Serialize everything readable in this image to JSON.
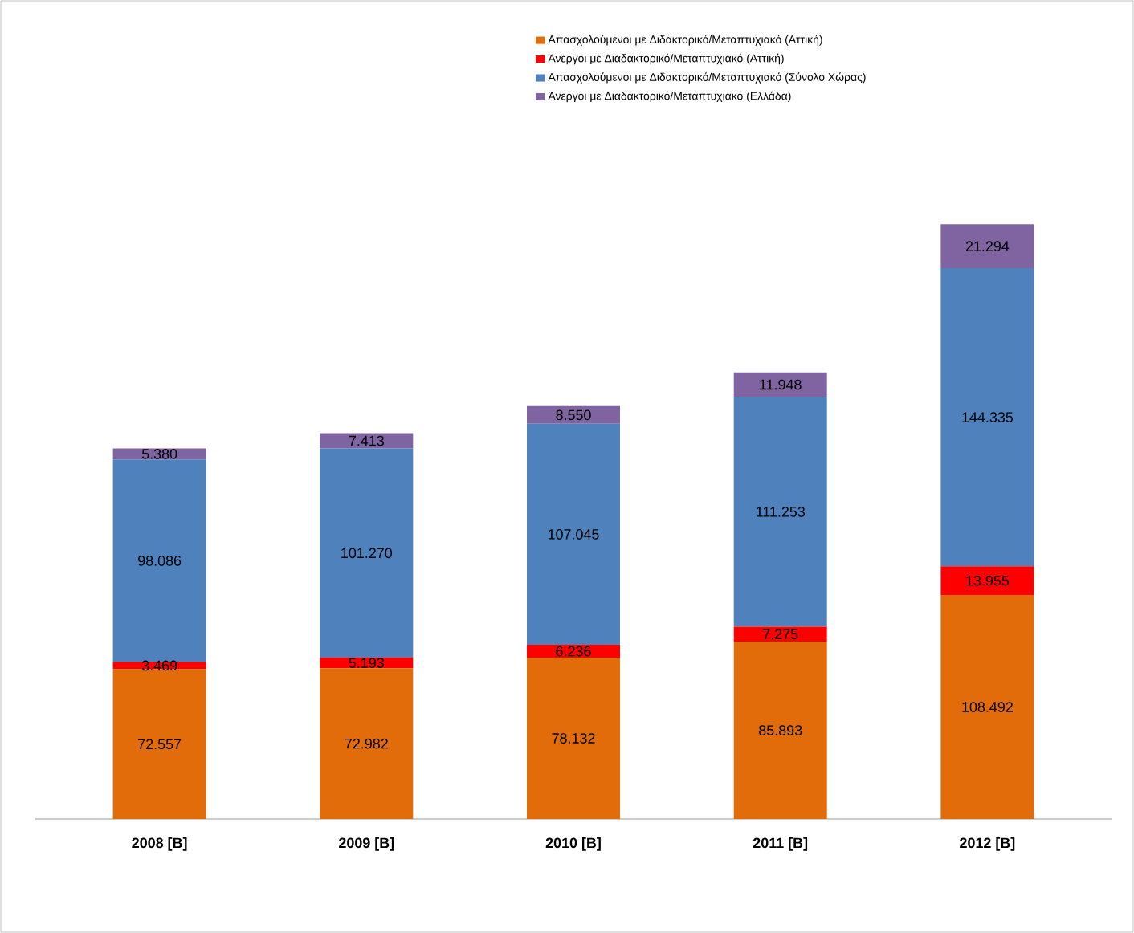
{
  "chart_data": {
    "type": "bar",
    "stacked": true,
    "legend": "top",
    "categories": [
      "2008 [Β]",
      "2009 [Β]",
      "2010 [Β]",
      "2011 [Β]",
      "2012 [Β]"
    ],
    "series": [
      {
        "name": "Απασχολούμενοι με Διδακτορικό/Μεταπτυχιακό (Αττική)",
        "color": "#e36c0a",
        "values": [
          72557,
          72982,
          78132,
          85893,
          108492
        ],
        "value_labels": [
          "72.557",
          "72.982",
          "78.132",
          "85.893",
          "108.492"
        ]
      },
      {
        "name": "Άνεργοι με Διαδακτορικό/Μεταπτυχιακό (Αττική)",
        "color": "#ff0000",
        "values": [
          3469,
          5193,
          6236,
          7275,
          13955
        ],
        "value_labels": [
          "3.469",
          "5.193",
          "6.236",
          "7.275",
          "13.955"
        ]
      },
      {
        "name": "Απασχολούμενοι με Διδακτορικό/Μεταπτυχιακό (Σύνολο Χώρας)",
        "color": "#4f81bd",
        "values": [
          98086,
          101270,
          107045,
          111253,
          144335
        ],
        "value_labels": [
          "98.086",
          "101.270",
          "107.045",
          "111.253",
          "144.335"
        ]
      },
      {
        "name": "Άνεργοι με Διαδακτορικό/Μεταπτυχιακό (Ελλάδα)",
        "color": "#8064a2",
        "values": [
          5380,
          7413,
          8550,
          11948,
          21294
        ],
        "value_labels": [
          "5.380",
          "7.413",
          "8.550",
          "11.948",
          "21.294"
        ]
      }
    ]
  }
}
